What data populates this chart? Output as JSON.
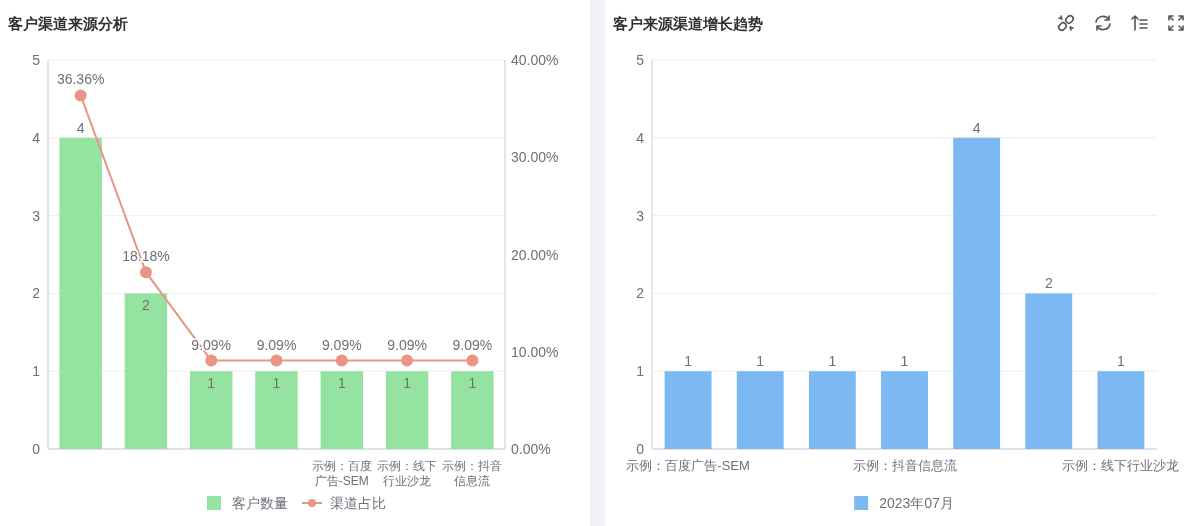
{
  "chart_data": [
    {
      "type": "bar",
      "title": "客户渠道来源分析",
      "categories": [
        null,
        null,
        null,
        null,
        "示例：百度广告-SEM",
        "示例：线下行业沙龙",
        "示例：抖音信息流"
      ],
      "series": [
        {
          "name": "客户数量",
          "type": "bar",
          "color": "#95e3a0",
          "values": [
            4,
            2,
            1,
            1,
            1,
            1,
            1
          ],
          "value_labels": [
            "4",
            "2",
            "1",
            "1",
            "1",
            "1",
            "1"
          ]
        },
        {
          "name": "渠道占比",
          "type": "line",
          "axis": "y2",
          "color": "#ea9484",
          "values": [
            36.36,
            18.18,
            9.09,
            9.09,
            9.09,
            9.09,
            9.09
          ],
          "value_labels": [
            "36.36%",
            "18.18%",
            "9.09%",
            "9.09%",
            "9.09%",
            "9.09%",
            "9.09%"
          ]
        }
      ],
      "ylim": [
        0,
        5
      ],
      "yticks": [
        0,
        1,
        2,
        3,
        4,
        5
      ],
      "y2lim": [
        0,
        40
      ],
      "y2ticks": [
        {
          "value": 0,
          "label": "0.00%"
        },
        {
          "value": 10,
          "label": "10.00%"
        },
        {
          "value": 20,
          "label": "20.00%"
        },
        {
          "value": 30,
          "label": "30.00%"
        },
        {
          "value": 40,
          "label": "40.00%"
        }
      ],
      "grid": "y",
      "legend": "bottom",
      "marker": "circle"
    },
    {
      "type": "bar",
      "title": "客户来源渠道增长趋势",
      "categories": [
        "示例：百度广告-SEM",
        null,
        null,
        "示例：抖音信息流",
        null,
        null,
        "示例：线下行业沙龙"
      ],
      "series": [
        {
          "name": "2023年07月",
          "color": "#7cb9f2",
          "values": [
            1,
            1,
            1,
            1,
            4,
            2,
            1
          ],
          "value_labels": [
            "1",
            "1",
            "1",
            "1",
            "4",
            "2",
            "1"
          ]
        }
      ],
      "ylim": [
        0,
        5
      ],
      "yticks": [
        0,
        1,
        2,
        3,
        4,
        5
      ],
      "grid": "y",
      "legend": "bottom"
    }
  ]
}
